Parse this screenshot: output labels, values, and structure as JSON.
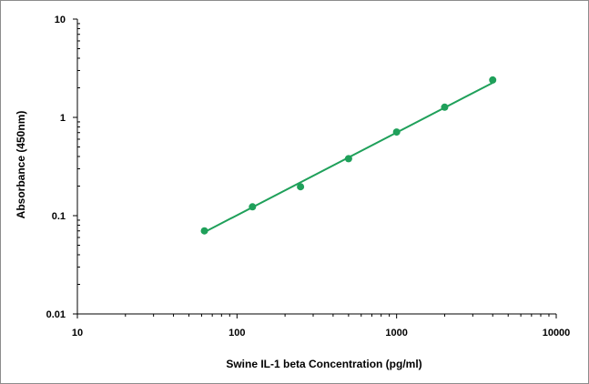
{
  "chart_data": {
    "type": "scatter",
    "title": "",
    "xlabel": "Swine IL-1 beta Concentration (pg/ml)",
    "ylabel": "Absorbance (450nm)",
    "xscale": "log",
    "yscale": "log",
    "xlim": [
      10,
      10000
    ],
    "ylim": [
      0.01,
      10
    ],
    "x_tick_labels": [
      "10",
      "100",
      "1000",
      "10000"
    ],
    "y_tick_labels": [
      "0.01",
      "0.1",
      "1",
      "10"
    ],
    "grid": false,
    "legend": "none",
    "series": [
      {
        "color": "#1fa05a",
        "x": [
          62.5,
          125,
          250,
          500,
          1000,
          2000,
          4000
        ],
        "y": [
          0.07,
          0.123,
          0.197,
          0.38,
          0.71,
          1.27,
          2.4
        ],
        "fit_line": {
          "type": "log-log linear",
          "x_range": [
            62.5,
            4000
          ],
          "y_range": [
            0.068,
            2.25
          ]
        }
      }
    ]
  }
}
